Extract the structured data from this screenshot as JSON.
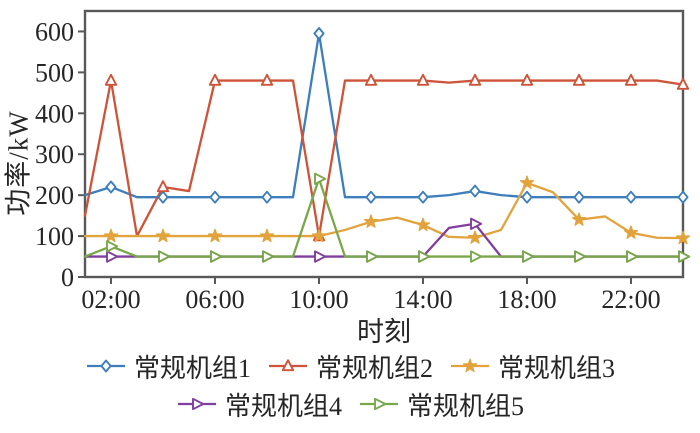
{
  "chart_data": {
    "type": "line",
    "title": "",
    "xlabel": "时刻",
    "ylabel": "功率/kW",
    "xlim": [
      1,
      24
    ],
    "ylim": [
      0,
      650
    ],
    "grid": false,
    "legend_position": "bottom",
    "frame_color": "#595959",
    "text_color": "#262626",
    "tick_label_fontsize": 26,
    "marker_every_hours": 2,
    "x": [
      1,
      2,
      3,
      4,
      5,
      6,
      7,
      8,
      9,
      10,
      11,
      12,
      13,
      14,
      15,
      16,
      17,
      18,
      19,
      20,
      21,
      22,
      23,
      24
    ],
    "xtick_values": [
      2,
      6,
      10,
      14,
      18,
      22
    ],
    "xtick_labels": [
      "02:00",
      "06:00",
      "10:00",
      "14:00",
      "18:00",
      "22:00"
    ],
    "ytick_values": [
      0,
      100,
      200,
      300,
      400,
      500,
      600
    ],
    "ytick_labels": [
      "0",
      "100",
      "200",
      "300",
      "400",
      "500",
      "600"
    ],
    "series": [
      {
        "name": "常规机组1",
        "color": "#3d7ebd",
        "marker": "diamond",
        "values": [
          200,
          220,
          195,
          195,
          195,
          195,
          195,
          195,
          195,
          595,
          195,
          195,
          195,
          195,
          200,
          210,
          200,
          195,
          195,
          195,
          195,
          195,
          195,
          195
        ]
      },
      {
        "name": "常规机组2",
        "color": "#cd5438",
        "marker": "triangle-up",
        "values": [
          150,
          480,
          100,
          220,
          210,
          480,
          480,
          480,
          480,
          100,
          480,
          480,
          480,
          480,
          475,
          480,
          480,
          480,
          480,
          480,
          480,
          480,
          480,
          470
        ]
      },
      {
        "name": "常规机组3",
        "color": "#e2a33d",
        "marker": "star",
        "values": [
          100,
          100,
          100,
          100,
          100,
          100,
          100,
          100,
          100,
          100,
          115,
          135,
          145,
          127,
          98,
          96,
          115,
          230,
          207,
          140,
          148,
          108,
          96,
          95
        ]
      },
      {
        "name": "常规机组4",
        "color": "#803e9e",
        "marker": "triangle-right",
        "values": [
          50,
          50,
          50,
          50,
          50,
          50,
          50,
          50,
          50,
          50,
          50,
          50,
          50,
          50,
          120,
          130,
          50,
          50,
          50,
          50,
          50,
          50,
          50,
          50
        ]
      },
      {
        "name": "常规机组5",
        "color": "#79a84b",
        "marker": "triangle-right",
        "values": [
          50,
          75,
          50,
          50,
          50,
          50,
          50,
          50,
          50,
          240,
          50,
          50,
          50,
          50,
          50,
          50,
          50,
          50,
          50,
          50,
          50,
          50,
          50,
          50
        ]
      }
    ]
  }
}
